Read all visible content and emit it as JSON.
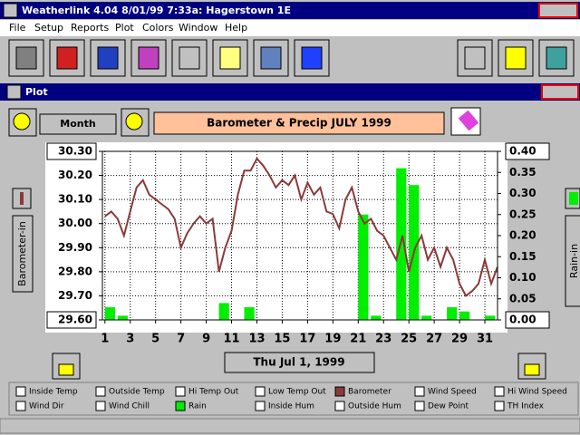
{
  "window": {
    "title": "Weatherlink 4.04   8/01/99   7:33a: Hagerstown 1E"
  },
  "menu": [
    "File",
    "Setup",
    "Reports",
    "Plot",
    "Colors",
    "Window",
    "Help"
  ],
  "plot_window": {
    "title": "Plot"
  },
  "controls": {
    "period": "Month",
    "banner": "Barometer & Precip   JULY 1999"
  },
  "chart_data": {
    "type": "line-bar",
    "y_label": "Barometer-in",
    "y2_label": "Rain-in",
    "xlim": [
      0.8,
      32
    ],
    "xticks": [
      1,
      3,
      5,
      7,
      9,
      11,
      13,
      15,
      17,
      19,
      21,
      23,
      25,
      27,
      29,
      31
    ],
    "ylim": [
      29.6,
      30.3
    ],
    "yticks": [
      {
        "value": 29.6,
        "label": "29.60"
      },
      {
        "value": 29.7,
        "label": "29.70"
      },
      {
        "value": 29.8,
        "label": "29.80"
      },
      {
        "value": 29.9,
        "label": "29.90"
      },
      {
        "value": 30.0,
        "label": "30.00"
      },
      {
        "value": 30.1,
        "label": "30.10"
      },
      {
        "value": 30.2,
        "label": "30.20"
      },
      {
        "value": 30.3,
        "label": "30.30"
      }
    ],
    "y2lim": [
      0,
      0.4
    ],
    "y2ticks": [
      {
        "value": 0,
        "label": "0.00"
      },
      0.05,
      {
        "value": 0.1,
        "label": "0.10"
      },
      0.15,
      {
        "value": 0.2,
        "label": "0.20"
      },
      0.25,
      {
        "value": 0.3,
        "label": "0.30"
      },
      0.35,
      {
        "value": 0.4,
        "label": "0.40"
      }
    ],
    "grid": true,
    "series": [
      {
        "name": "Rain",
        "kind": "bar",
        "axis": "y2",
        "color": "#00ee00",
        "x": [
          1,
          2,
          10,
          12,
          21,
          22,
          24,
          25,
          26,
          28,
          29,
          31
        ],
        "values": [
          0.03,
          0.01,
          0.04,
          0.03,
          0.25,
          0.01,
          0.36,
          0.32,
          0.01,
          0.03,
          0.02,
          0.01
        ]
      },
      {
        "name": "Barometer",
        "kind": "line",
        "color": "#8b3a3a",
        "x": [
          1,
          1.5,
          2,
          2.5,
          3,
          3.5,
          4,
          4.5,
          5,
          5.5,
          6,
          6.5,
          7,
          7.5,
          8,
          8.5,
          9,
          9.5,
          10,
          10.5,
          11,
          11.5,
          12,
          12.5,
          13,
          13.5,
          14,
          14.5,
          15,
          15.5,
          16,
          16.5,
          17,
          17.5,
          18,
          18.5,
          19,
          19.5,
          20,
          20.5,
          21,
          21.5,
          22,
          22.5,
          23,
          23.5,
          24,
          24.5,
          25,
          25.5,
          26,
          26.5,
          27,
          27.5,
          28,
          28.5,
          29,
          29.5,
          30,
          30.5,
          31,
          31.5,
          32
        ],
        "values": [
          30.03,
          30.05,
          30.02,
          29.95,
          30.05,
          30.15,
          30.18,
          30.12,
          30.1,
          30.08,
          30.06,
          30.02,
          29.9,
          29.96,
          30.0,
          30.03,
          30.0,
          30.02,
          29.8,
          29.9,
          29.97,
          30.12,
          30.22,
          30.22,
          30.27,
          30.24,
          30.2,
          30.15,
          30.18,
          30.16,
          30.2,
          30.1,
          30.17,
          30.12,
          30.15,
          30.05,
          30.04,
          29.98,
          30.1,
          30.15,
          30.05,
          30.0,
          30.02,
          29.97,
          29.95,
          29.9,
          29.85,
          29.95,
          29.8,
          29.9,
          29.95,
          29.85,
          29.9,
          29.82,
          29.9,
          29.85,
          29.75,
          29.7,
          29.72,
          29.75,
          29.85,
          29.75,
          29.82
        ]
      }
    ]
  },
  "date_button": "Thu Jul 1, 1999",
  "legend": [
    {
      "label": "Inside Temp",
      "checked": false
    },
    {
      "label": "Outside Temp",
      "checked": false
    },
    {
      "label": "Hi Temp Out",
      "checked": false
    },
    {
      "label": "Low Temp Out",
      "checked": false
    },
    {
      "label": "Barometer",
      "checked": true,
      "color": "#8b3a3a"
    },
    {
      "label": "Wind Speed",
      "checked": false
    },
    {
      "label": "Hi Wind Speed",
      "checked": false
    },
    {
      "label": "Wind Dir",
      "checked": false
    },
    {
      "label": "Wind Chill",
      "checked": false
    },
    {
      "label": "Rain",
      "checked": true,
      "color": "#00ee00"
    },
    {
      "label": "Inside Hum",
      "checked": false
    },
    {
      "label": "Outside Hum",
      "checked": false
    },
    {
      "label": "Dew Point",
      "checked": false
    },
    {
      "label": "TH Index",
      "checked": false
    }
  ]
}
